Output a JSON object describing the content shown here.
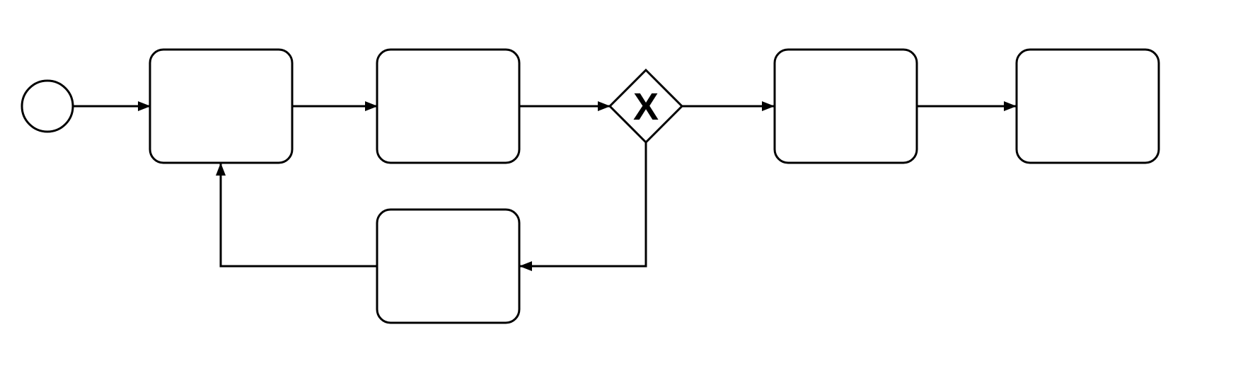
{
  "diagram": {
    "type": "bpmn-process",
    "colors": {
      "stroke": "#000000",
      "fill": "#ffffff",
      "background": "#ffffff"
    },
    "gateway_marker": "X",
    "nodes": [
      {
        "id": "start-event",
        "kind": "start-event",
        "label": ""
      },
      {
        "id": "task-1",
        "kind": "task",
        "label": ""
      },
      {
        "id": "task-2",
        "kind": "task",
        "label": ""
      },
      {
        "id": "exclusive-gateway",
        "kind": "exclusive-gateway",
        "label": ""
      },
      {
        "id": "task-3",
        "kind": "task",
        "label": ""
      },
      {
        "id": "task-4",
        "kind": "task",
        "label": ""
      },
      {
        "id": "task-loop",
        "kind": "task",
        "label": ""
      }
    ],
    "flows": [
      {
        "from": "start-event",
        "to": "task-1"
      },
      {
        "from": "task-1",
        "to": "task-2"
      },
      {
        "from": "task-2",
        "to": "exclusive-gateway"
      },
      {
        "from": "exclusive-gateway",
        "to": "task-3"
      },
      {
        "from": "task-3",
        "to": "task-4"
      },
      {
        "from": "exclusive-gateway",
        "to": "task-loop"
      },
      {
        "from": "task-loop",
        "to": "task-1"
      }
    ]
  }
}
